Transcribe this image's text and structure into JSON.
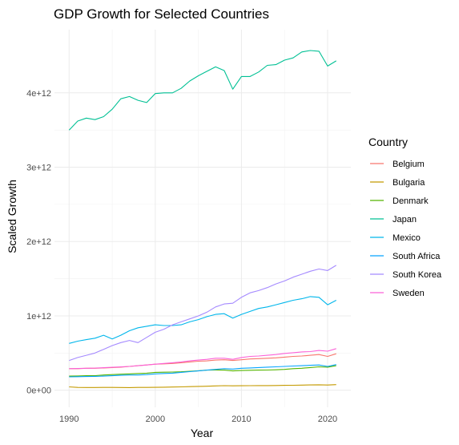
{
  "chart_data": {
    "type": "line",
    "title": "GDP Growth for Selected Countries",
    "xlabel": "Year",
    "ylabel": "Scaled Growth",
    "xlim": [
      1988.3,
      2022.7
    ],
    "ylim": [
      -230000000000.0,
      4850000000000.0
    ],
    "x_ticks": [
      1990,
      2000,
      2010,
      2020
    ],
    "x_tick_labels": [
      "1990",
      "2000",
      "2010",
      "2020"
    ],
    "y_ticks": [
      0,
      1000000000000.0,
      2000000000000.0,
      3000000000000.0,
      4000000000000.0
    ],
    "y_tick_labels": [
      "0e+00",
      "1e+12",
      "2e+12",
      "3e+12",
      "4e+12"
    ],
    "grid": true,
    "legend_position": "right",
    "legend_title": "Country",
    "x": [
      1990,
      1991,
      1992,
      1993,
      1994,
      1995,
      1996,
      1997,
      1998,
      1999,
      2000,
      2001,
      2002,
      2003,
      2004,
      2005,
      2006,
      2007,
      2008,
      2009,
      2010,
      2011,
      2012,
      2013,
      2014,
      2015,
      2016,
      2017,
      2018,
      2019,
      2020,
      2021
    ],
    "series": [
      {
        "name": "Belgium",
        "color": "#F8766D",
        "values": [
          290000000000.0,
          290000000000.0,
          295000000000.0,
          295000000000.0,
          300000000000.0,
          305000000000.0,
          310000000000.0,
          320000000000.0,
          330000000000.0,
          340000000000.0,
          350000000000.0,
          355000000000.0,
          360000000000.0,
          370000000000.0,
          380000000000.0,
          390000000000.0,
          395000000000.0,
          405000000000.0,
          410000000000.0,
          400000000000.0,
          410000000000.0,
          420000000000.0,
          425000000000.0,
          430000000000.0,
          435000000000.0,
          445000000000.0,
          455000000000.0,
          460000000000.0,
          470000000000.0,
          480000000000.0,
          455000000000.0,
          490000000000.0
        ]
      },
      {
        "name": "Bulgaria",
        "color": "#C49A00",
        "values": [
          45000000000.0,
          38000000000.0,
          36000000000.0,
          36000000000.0,
          37000000000.0,
          38000000000.0,
          36000000000.0,
          35000000000.0,
          37000000000.0,
          38000000000.0,
          39000000000.0,
          41000000000.0,
          43000000000.0,
          45000000000.0,
          48000000000.0,
          51000000000.0,
          54000000000.0,
          58000000000.0,
          61000000000.0,
          59000000000.0,
          60000000000.0,
          61000000000.0,
          62000000000.0,
          62000000000.0,
          63000000000.0,
          65000000000.0,
          67000000000.0,
          69000000000.0,
          71000000000.0,
          73000000000.0,
          70000000000.0,
          75000000000.0
        ]
      },
      {
        "name": "Denmark",
        "color": "#53B400",
        "values": [
          190000000000.0,
          192000000000.0,
          195000000000.0,
          195000000000.0,
          205000000000.0,
          210000000000.0,
          215000000000.0,
          220000000000.0,
          225000000000.0,
          230000000000.0,
          240000000000.0,
          242000000000.0,
          245000000000.0,
          248000000000.0,
          255000000000.0,
          262000000000.0,
          270000000000.0,
          272000000000.0,
          270000000000.0,
          260000000000.0,
          265000000000.0,
          268000000000.0,
          270000000000.0,
          272000000000.0,
          275000000000.0,
          280000000000.0,
          290000000000.0,
          295000000000.0,
          305000000000.0,
          315000000000.0,
          310000000000.0,
          330000000000.0
        ]
      },
      {
        "name": "Japan",
        "color": "#00C094",
        "values": [
          3500000000000.0,
          3620000000000.0,
          3660000000000.0,
          3640000000000.0,
          3680000000000.0,
          3780000000000.0,
          3920000000000.0,
          3950000000000.0,
          3900000000000.0,
          3870000000000.0,
          3990000000000.0,
          4000000000000.0,
          4000000000000.0,
          4060000000000.0,
          4160000000000.0,
          4230000000000.0,
          4290000000000.0,
          4350000000000.0,
          4300000000000.0,
          4050000000000.0,
          4220000000000.0,
          4220000000000.0,
          4280000000000.0,
          4370000000000.0,
          4380000000000.0,
          4440000000000.0,
          4470000000000.0,
          4550000000000.0,
          4570000000000.0,
          4560000000000.0,
          4360000000000.0,
          4430000000000.0
        ]
      },
      {
        "name": "Mexico",
        "color": "#00B6EB",
        "values": [
          630000000000.0,
          660000000000.0,
          680000000000.0,
          700000000000.0,
          740000000000.0,
          690000000000.0,
          740000000000.0,
          800000000000.0,
          840000000000.0,
          860000000000.0,
          880000000000.0,
          870000000000.0,
          870000000000.0,
          880000000000.0,
          920000000000.0,
          950000000000.0,
          990000000000.0,
          1020000000000.0,
          1030000000000.0,
          970000000000.0,
          1020000000000.0,
          1060000000000.0,
          1100000000000.0,
          1120000000000.0,
          1150000000000.0,
          1180000000000.0,
          1210000000000.0,
          1230000000000.0,
          1260000000000.0,
          1250000000000.0,
          1150000000000.0,
          1210000000000.0
        ]
      },
      {
        "name": "South Africa",
        "color": "#06A4FF",
        "values": [
          180000000000.0,
          182000000000.0,
          184000000000.0,
          186000000000.0,
          190000000000.0,
          195000000000.0,
          200000000000.0,
          205000000000.0,
          205000000000.0,
          210000000000.0,
          220000000000.0,
          225000000000.0,
          230000000000.0,
          240000000000.0,
          250000000000.0,
          260000000000.0,
          270000000000.0,
          280000000000.0,
          290000000000.0,
          285000000000.0,
          295000000000.0,
          300000000000.0,
          305000000000.0,
          310000000000.0,
          315000000000.0,
          320000000000.0,
          325000000000.0,
          330000000000.0,
          335000000000.0,
          340000000000.0,
          320000000000.0,
          345000000000.0
        ]
      },
      {
        "name": "South Korea",
        "color": "#A58AFF",
        "values": [
          400000000000.0,
          440000000000.0,
          470000000000.0,
          500000000000.0,
          550000000000.0,
          600000000000.0,
          640000000000.0,
          670000000000.0,
          640000000000.0,
          710000000000.0,
          780000000000.0,
          820000000000.0,
          880000000000.0,
          920000000000.0,
          960000000000.0,
          1000000000000.0,
          1050000000000.0,
          1120000000000.0,
          1160000000000.0,
          1170000000000.0,
          1250000000000.0,
          1310000000000.0,
          1340000000000.0,
          1380000000000.0,
          1430000000000.0,
          1470000000000.0,
          1520000000000.0,
          1560000000000.0,
          1600000000000.0,
          1630000000000.0,
          1610000000000.0,
          1680000000000.0
        ]
      },
      {
        "name": "Sweden",
        "color": "#FB61D7",
        "values": [
          290000000000.0,
          292000000000.0,
          295000000000.0,
          297000000000.0,
          303000000000.0,
          308000000000.0,
          314000000000.0,
          320000000000.0,
          330000000000.0,
          340000000000.0,
          350000000000.0,
          360000000000.0,
          370000000000.0,
          380000000000.0,
          395000000000.0,
          405000000000.0,
          415000000000.0,
          430000000000.0,
          430000000000.0,
          415000000000.0,
          440000000000.0,
          455000000000.0,
          460000000000.0,
          470000000000.0,
          480000000000.0,
          495000000000.0,
          505000000000.0,
          515000000000.0,
          520000000000.0,
          535000000000.0,
          525000000000.0,
          560000000000.0
        ]
      }
    ]
  }
}
